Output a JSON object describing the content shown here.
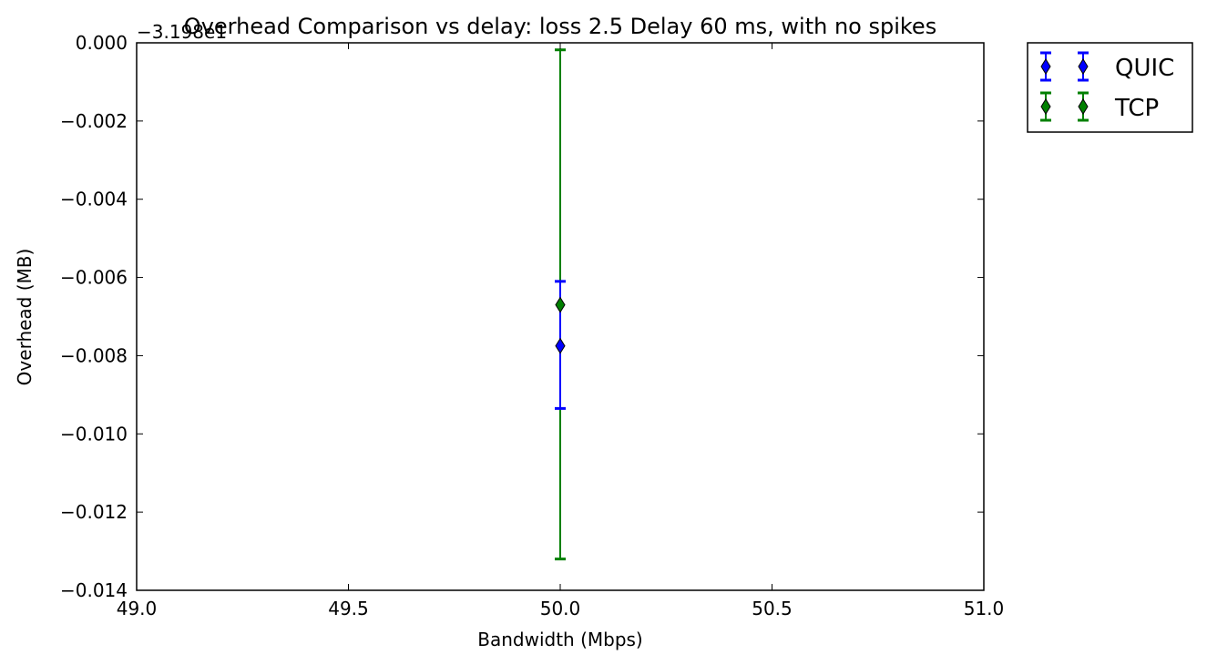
{
  "chart_data": {
    "type": "scatter",
    "title": "Overhead Comparison vs delay: loss 2.5 Delay 60 ms, with no spikes",
    "xlabel": "Bandwidth (Mbps)",
    "ylabel": "Overhead (MB)",
    "offset_label": "−3.198e1",
    "xlim": [
      49.0,
      51.0
    ],
    "ylim": [
      -0.014,
      0.0
    ],
    "xticks": [
      49.0,
      49.5,
      50.0,
      50.5,
      51.0
    ],
    "xtick_labels": [
      "49.0",
      "49.5",
      "50.0",
      "50.5",
      "51.0"
    ],
    "yticks": [
      0.0,
      -0.002,
      -0.004,
      -0.006,
      -0.008,
      -0.01,
      -0.012,
      -0.014
    ],
    "ytick_labels": [
      "0.000",
      "−0.002",
      "−0.004",
      "−0.006",
      "−0.008",
      "−0.010",
      "−0.012",
      "−0.014"
    ],
    "grid": false,
    "legend_position": "outside-top-right",
    "series": [
      {
        "name": "QUIC",
        "color": "#0000ff",
        "x": [
          50.0
        ],
        "y": [
          -0.00775
        ],
        "yerr_low": [
          -0.00935
        ],
        "yerr_high": [
          -0.0061
        ]
      },
      {
        "name": "TCP",
        "color": "#008000",
        "x": [
          50.0
        ],
        "y": [
          -0.0067
        ],
        "yerr_low": [
          -0.0132
        ],
        "yerr_high": [
          -0.00018
        ]
      }
    ]
  }
}
